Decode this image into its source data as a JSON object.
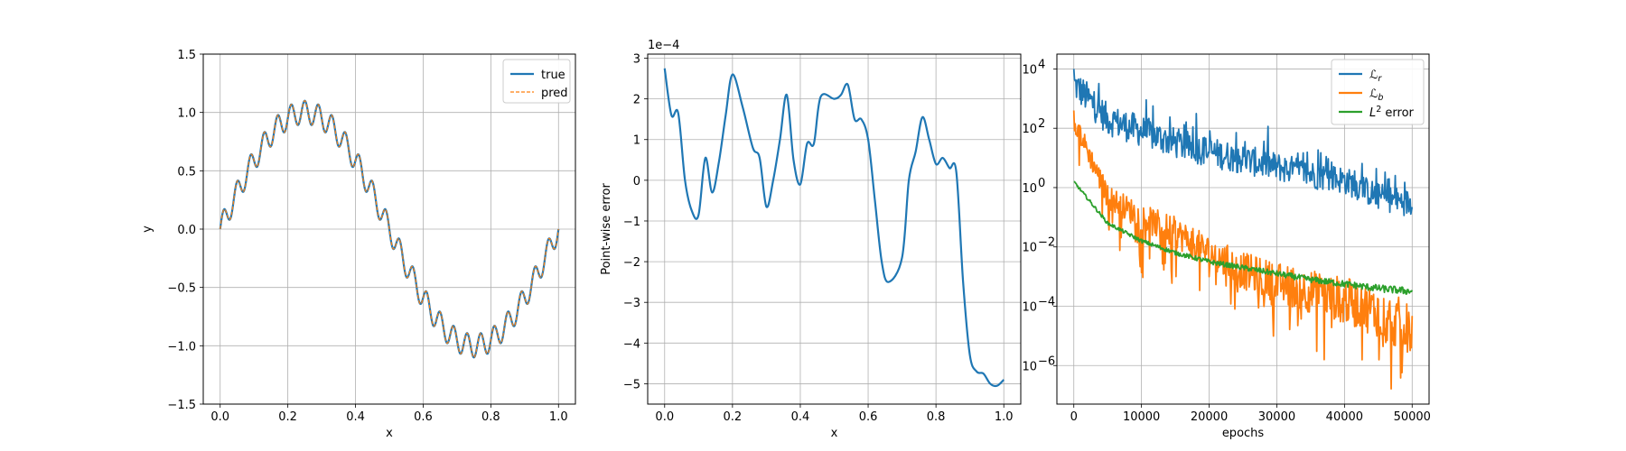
{
  "chart_data": [
    {
      "type": "line",
      "xlabel": "x",
      "ylabel": "y",
      "xlim": [
        -0.05,
        1.05
      ],
      "ylim": [
        -1.5,
        1.5
      ],
      "xticks": [
        0.0,
        0.2,
        0.4,
        0.6,
        0.8,
        1.0
      ],
      "xtick_labels": [
        "0.0",
        "0.2",
        "0.4",
        "0.6",
        "0.8",
        "1.0"
      ],
      "yticks": [
        -1.5,
        -1.0,
        -0.5,
        0.0,
        0.5,
        1.0,
        1.5
      ],
      "ytick_labels": [
        "−1.5",
        "−1.0",
        "−0.5",
        "0.0",
        "0.5",
        "1.0",
        "1.5"
      ],
      "grid": true,
      "legend_position": "top-right",
      "series": [
        {
          "name": "true",
          "color": "#1f77b4",
          "style": "solid",
          "function": "y = sin(2πx) + 0.1·sin(50πx)",
          "x_range": [
            0,
            1
          ],
          "samples": 801
        },
        {
          "name": "pred",
          "color": "#ff7f0e",
          "style": "dashed",
          "function": "y = sin(2πx) + 0.1·sin(50πx)",
          "x_range": [
            0,
            1
          ],
          "samples": 801
        }
      ]
    },
    {
      "type": "line",
      "xlabel": "x",
      "ylabel": "Point-wise error",
      "scale_label": "1e−4",
      "xlim": [
        -0.05,
        1.05
      ],
      "ylim": [
        -5.5,
        3.1
      ],
      "xticks": [
        0.0,
        0.2,
        0.4,
        0.6,
        0.8,
        1.0
      ],
      "xtick_labels": [
        "0.0",
        "0.2",
        "0.4",
        "0.6",
        "0.8",
        "1.0"
      ],
      "yticks": [
        -5,
        -4,
        -3,
        -2,
        -1,
        0,
        1,
        2,
        3
      ],
      "ytick_labels": [
        "−5",
        "−4",
        "−3",
        "−2",
        "−1",
        "0",
        "1",
        "2",
        "3"
      ],
      "grid": true,
      "series": [
        {
          "color": "#1f77b4",
          "x": [
            0.0,
            0.02,
            0.04,
            0.06,
            0.08,
            0.1,
            0.12,
            0.14,
            0.16,
            0.18,
            0.2,
            0.23,
            0.26,
            0.28,
            0.3,
            0.32,
            0.34,
            0.36,
            0.38,
            0.4,
            0.42,
            0.44,
            0.46,
            0.5,
            0.52,
            0.54,
            0.56,
            0.58,
            0.6,
            0.62,
            0.64,
            0.66,
            0.7,
            0.72,
            0.74,
            0.76,
            0.78,
            0.8,
            0.82,
            0.84,
            0.86,
            0.88,
            0.9,
            0.92,
            0.94,
            0.96,
            0.98,
            1.0
          ],
          "y": [
            2.75,
            1.6,
            1.65,
            0.0,
            -0.75,
            -0.85,
            0.55,
            -0.3,
            0.45,
            1.6,
            2.6,
            1.8,
            0.8,
            0.55,
            -0.65,
            0.0,
            1.0,
            2.1,
            0.5,
            -0.1,
            0.9,
            0.9,
            2.05,
            2.0,
            2.1,
            2.35,
            1.5,
            1.5,
            1.0,
            -0.5,
            -2.0,
            -2.5,
            -1.9,
            0.0,
            0.7,
            1.55,
            1.0,
            0.4,
            0.55,
            0.3,
            0.2,
            -2.5,
            -4.3,
            -4.7,
            -4.75,
            -5.0,
            -5.05,
            -4.9
          ]
        }
      ]
    },
    {
      "type": "line",
      "xlabel": "epochs",
      "yscale": "log",
      "xlim": [
        -2500,
        52500
      ],
      "ylim_log10": [
        -7.3,
        4.5
      ],
      "xticks": [
        0,
        10000,
        20000,
        30000,
        40000,
        50000
      ],
      "xtick_labels": [
        "0",
        "10000",
        "20000",
        "30000",
        "40000",
        "50000"
      ],
      "yticks_log10": [
        -6,
        -4,
        -2,
        0,
        2,
        4
      ],
      "ytick_labels": [
        "10",
        "10",
        "10",
        "10",
        "10",
        "10"
      ],
      "ytick_exponents": [
        "−6",
        "−4",
        "−2",
        "0",
        "2",
        "4"
      ],
      "grid": true,
      "legend_position": "top-right",
      "series": [
        {
          "name": "ℒ",
          "name_sub": "r",
          "color": "#1f77b4",
          "x": [
            0,
            5000,
            10000,
            15000,
            20000,
            25000,
            30000,
            35000,
            40000,
            45000,
            50000
          ],
          "log10_y": [
            3.5,
            2.3,
            1.9,
            1.5,
            1.2,
            0.95,
            0.7,
            0.45,
            0.25,
            -0.3,
            -0.55
          ]
        },
        {
          "name": "ℒ",
          "name_sub": "b",
          "color": "#ff7f0e",
          "x": [
            0,
            5000,
            10000,
            15000,
            20000,
            25000,
            30000,
            35000,
            40000,
            45000,
            50000
          ],
          "log10_y": [
            2.3,
            -0.3,
            -1.0,
            -1.5,
            -2.2,
            -2.8,
            -3.2,
            -3.5,
            -3.8,
            -4.2,
            -4.8
          ]
        },
        {
          "name": "L",
          "name_sup": "2",
          "name_suffix": " error",
          "color": "#2ca02c",
          "x": [
            0,
            5000,
            10000,
            15000,
            20000,
            25000,
            30000,
            35000,
            40000,
            45000,
            50000
          ],
          "log10_y": [
            0.2,
            -1.2,
            -1.8,
            -2.2,
            -2.5,
            -2.7,
            -2.9,
            -3.1,
            -3.25,
            -3.4,
            -3.5
          ]
        }
      ]
    }
  ]
}
